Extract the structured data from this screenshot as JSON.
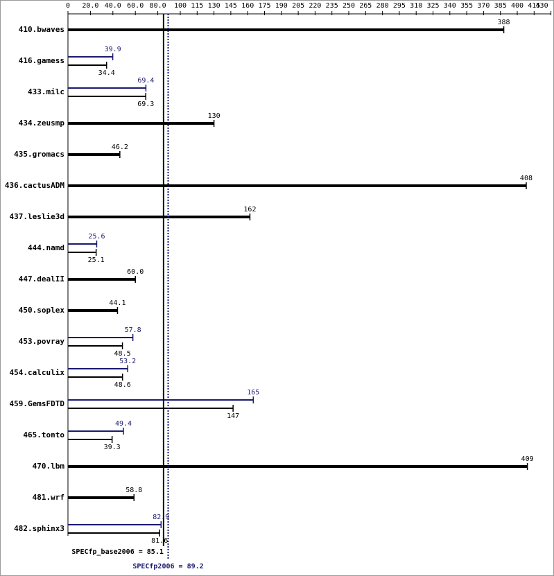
{
  "chart_data": {
    "type": "bar",
    "categories": [
      "410.bwaves",
      "416.gamess",
      "433.milc",
      "434.zeusmp",
      "435.gromacs",
      "436.cactusADM",
      "437.leslie3d",
      "444.namd",
      "447.dealII",
      "450.soplex",
      "453.povray",
      "454.calculix",
      "459.GemsFDTD",
      "465.tonto",
      "470.lbm",
      "481.wrf",
      "482.sphinx3"
    ],
    "series": [
      {
        "color": "#000000",
        "values": [
          388,
          34.4,
          69.3,
          130,
          46.2,
          408,
          162,
          25.1,
          60.0,
          44.1,
          48.5,
          48.6,
          147,
          39.3,
          409,
          58.8,
          81.6
        ],
        "value_labels": [
          "388",
          "34.4",
          "69.3",
          "130",
          "46.2",
          "408",
          "162",
          "25.1",
          "60.0",
          "44.1",
          "48.5",
          "48.6",
          "147",
          "39.3",
          "409",
          "58.8",
          "81.6"
        ]
      },
      {
        "color": "#191970",
        "values": [
          null,
          39.9,
          69.4,
          null,
          null,
          null,
          null,
          25.6,
          null,
          null,
          57.8,
          53.2,
          165,
          49.4,
          null,
          null,
          82.9
        ],
        "value_labels": [
          null,
          "39.9",
          "69.4",
          null,
          null,
          null,
          null,
          "25.6",
          null,
          null,
          "57.8",
          "53.2",
          "165",
          "49.4",
          null,
          null,
          "82.9"
        ]
      }
    ],
    "xlim": [
      0,
      430
    ],
    "xticks": [
      0,
      {
        "value": 20,
        "label": "20.0"
      },
      {
        "value": 40,
        "label": "40.0"
      },
      {
        "value": 60,
        "label": "60.0"
      },
      {
        "value": 80,
        "label": "80.0"
      },
      100,
      115,
      130,
      145,
      160,
      175,
      190,
      205,
      220,
      235,
      250,
      265,
      280,
      295,
      310,
      325,
      340,
      355,
      370,
      385,
      400,
      415,
      430
    ],
    "reference_lines": [
      {
        "value": 85.1,
        "label": "SPECfp_base2006 = 85.1",
        "color": "#000000"
      },
      {
        "value": 89.2,
        "label": "SPECfp2006 = 89.2",
        "color": "#191970"
      }
    ]
  }
}
